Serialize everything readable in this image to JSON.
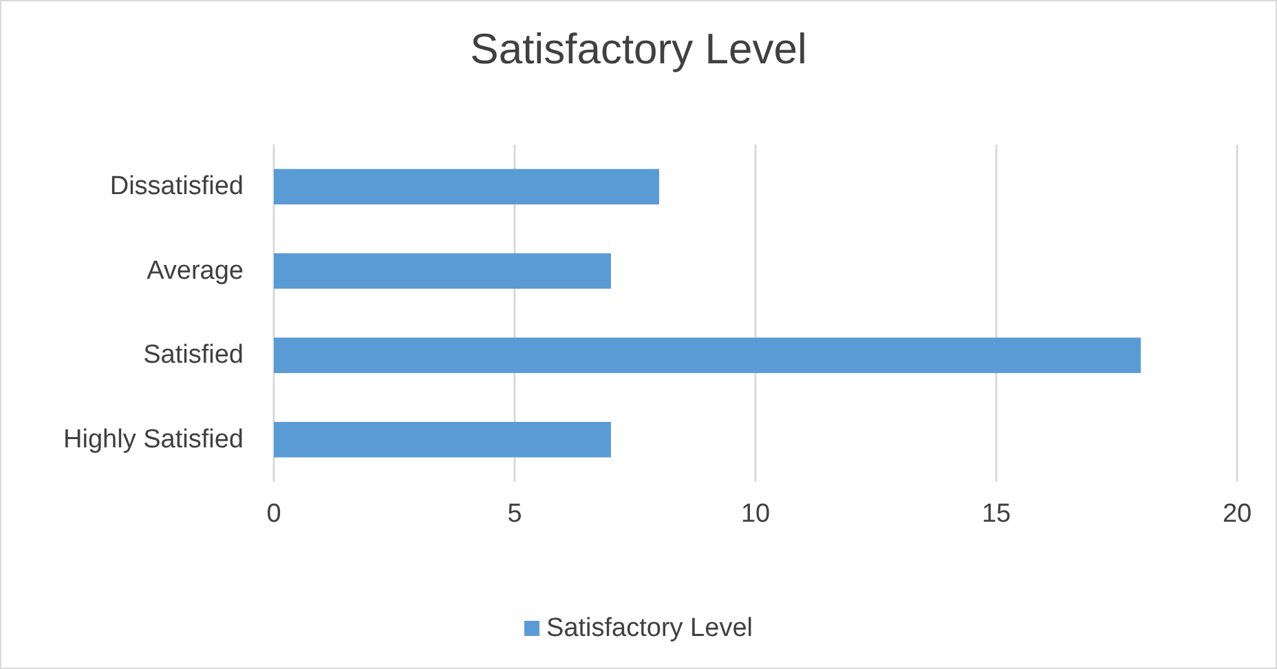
{
  "chart_data": {
    "type": "bar",
    "orientation": "horizontal",
    "title": "Satisfactory Level",
    "categories": [
      "Dissatisfied",
      "Average",
      "Satisfied",
      "Highly Satisfied"
    ],
    "series": [
      {
        "name": "Satisfactory Level",
        "color": "#5b9bd5",
        "values": [
          8,
          7,
          18,
          7
        ]
      }
    ],
    "xlim": [
      0,
      20
    ],
    "xticks": [
      0,
      5,
      10,
      15,
      20
    ],
    "grid": "x",
    "legend": "bottom"
  }
}
